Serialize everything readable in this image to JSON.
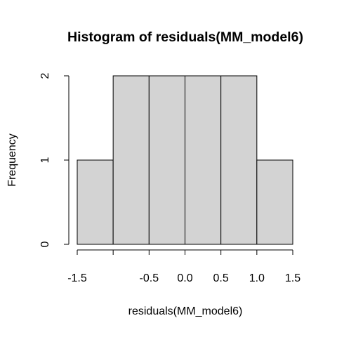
{
  "chart_data": {
    "type": "bar",
    "title": "Histogram of residuals(MM_model6)",
    "xlabel": "residuals(MM_model6)",
    "ylabel": "Frequency",
    "bins": [
      {
        "from": -1.5,
        "to": -1.0,
        "count": 1
      },
      {
        "from": -1.0,
        "to": -0.5,
        "count": 2
      },
      {
        "from": -0.5,
        "to": 0.0,
        "count": 2
      },
      {
        "from": 0.0,
        "to": 0.5,
        "count": 2
      },
      {
        "from": 0.5,
        "to": 1.0,
        "count": 2
      },
      {
        "from": 1.0,
        "to": 1.5,
        "count": 1
      }
    ],
    "x_ticks": [
      -1.5,
      -1.0,
      -0.5,
      0.0,
      0.5,
      1.0,
      1.5
    ],
    "x_tick_labels": [
      "-1.5",
      "",
      "-0.5",
      "0.0",
      "0.5",
      "1.0",
      "1.5"
    ],
    "y_ticks": [
      0,
      1,
      2
    ],
    "y_tick_labels": [
      "0",
      "1",
      "2"
    ],
    "xlim": [
      -1.5,
      1.5
    ],
    "ylim": [
      0,
      2
    ],
    "bar_color": "#d3d3d3",
    "border_color": "#000000",
    "grid": false
  }
}
